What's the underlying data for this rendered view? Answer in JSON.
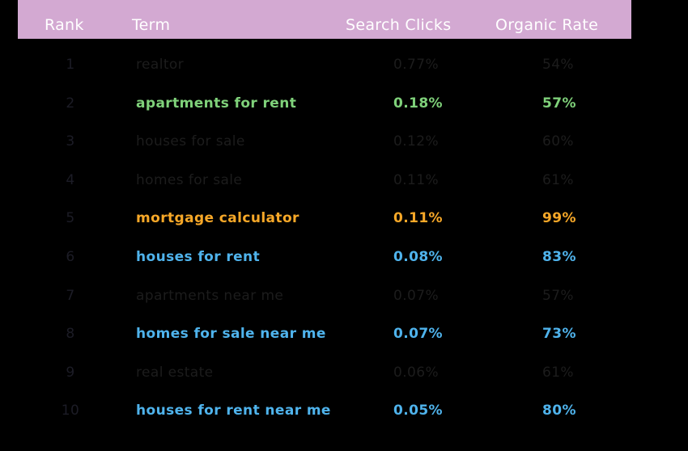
{
  "colors": {
    "header_bg": "#d3a9d2",
    "header_text": "#ffffff",
    "default_text": "#1c1c1c",
    "default_rank": "#1c1c26",
    "green": "#7fd17a",
    "orange": "#f7a828",
    "blue": "#4fb3ec"
  },
  "chart_data": {
    "type": "table",
    "columns": [
      "Rank",
      "Term",
      "Search Clicks",
      "Organic Rate"
    ],
    "rows": [
      {
        "rank": "1",
        "term": "realtor",
        "clicks": "0.77%",
        "organic": "54%",
        "highlight": "none"
      },
      {
        "rank": "2",
        "term": "apartments for rent",
        "clicks": "0.18%",
        "organic": "57%",
        "highlight": "green"
      },
      {
        "rank": "3",
        "term": "houses for sale",
        "clicks": "0.12%",
        "organic": "60%",
        "highlight": "none"
      },
      {
        "rank": "4",
        "term": "homes for sale",
        "clicks": "0.11%",
        "organic": "61%",
        "highlight": "none"
      },
      {
        "rank": "5",
        "term": "mortgage calculator",
        "clicks": "0.11%",
        "organic": "99%",
        "highlight": "orange"
      },
      {
        "rank": "6",
        "term": "houses for rent",
        "clicks": "0.08%",
        "organic": "83%",
        "highlight": "blue"
      },
      {
        "rank": "7",
        "term": "apartments near me",
        "clicks": "0.07%",
        "organic": "57%",
        "highlight": "none"
      },
      {
        "rank": "8",
        "term": "homes for sale near me",
        "clicks": "0.07%",
        "organic": "73%",
        "highlight": "blue"
      },
      {
        "rank": "9",
        "term": "real estate",
        "clicks": "0.06%",
        "organic": "61%",
        "highlight": "none"
      },
      {
        "rank": "10",
        "term": "houses for rent near me",
        "clicks": "0.05%",
        "organic": "80%",
        "highlight": "blue"
      }
    ]
  }
}
